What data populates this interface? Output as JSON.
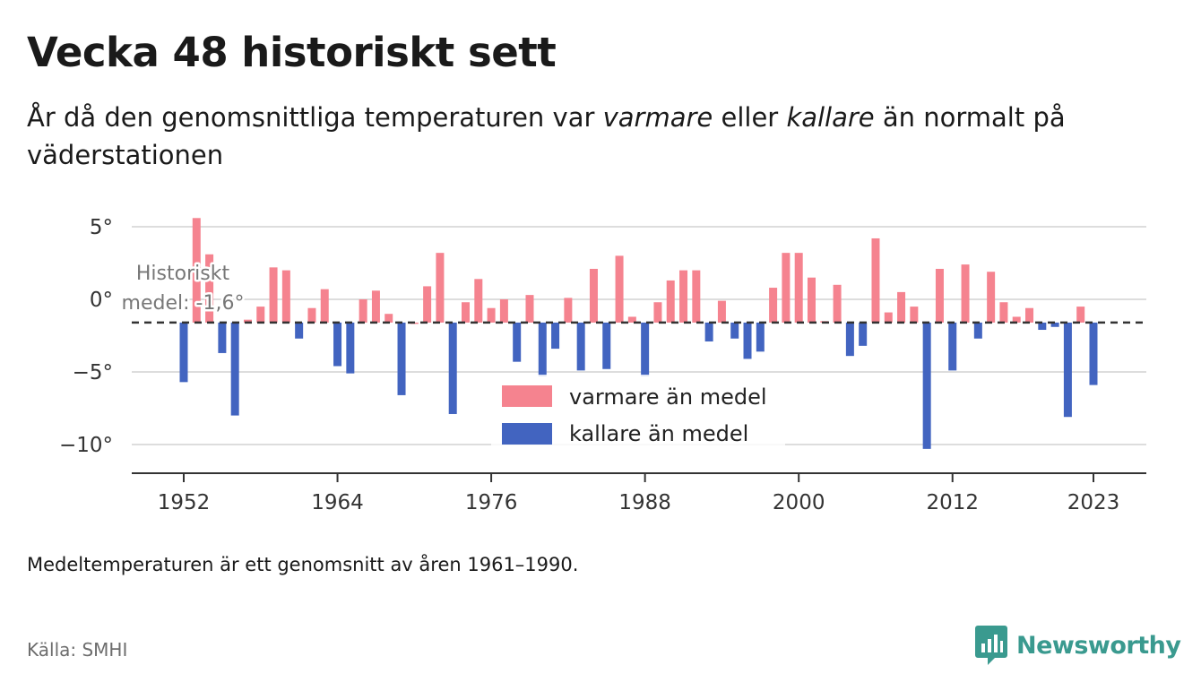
{
  "title": "Vecka 48 historiskt sett",
  "subtitle": {
    "part1": "År då den genomsnittliga temperaturen var ",
    "warm_word": "varmare",
    "part2": " eller ",
    "cold_word": "kallare",
    "part3": " än normalt på väderstationen"
  },
  "note": "Medeltemperaturen är ett genomsnitt av åren 1961–1990.",
  "source": "Källa: SMHI",
  "brand": {
    "name": "Newsworthy",
    "icon": "newsworthy-logo-icon"
  },
  "colors": {
    "warm": "#f5838f",
    "cold": "#4264c0",
    "axis": "#333333",
    "grid": "#dddddd",
    "brand": "#3a9a8f"
  },
  "chart_data": {
    "type": "bar",
    "baseline": -1.6,
    "baseline_label_line1": "Historiskt",
    "baseline_label_line2": "medel: -1,6°",
    "ylim": [
      -12,
      7
    ],
    "yticks": [
      5,
      0,
      -5,
      -10
    ],
    "ytick_labels": [
      "5°",
      "0°",
      "−5°",
      "−10°"
    ],
    "xticks": [
      1952,
      1964,
      1976,
      1988,
      2000,
      2012,
      2023
    ],
    "xlim": [
      1948,
      2027
    ],
    "legend": {
      "warm": "varmare än medel",
      "cold": "kallare än medel",
      "position": "bottom-center"
    },
    "x": [
      1952,
      1953,
      1954,
      1955,
      1956,
      1957,
      1958,
      1959,
      1960,
      1961,
      1962,
      1963,
      1964,
      1965,
      1966,
      1967,
      1968,
      1969,
      1970,
      1971,
      1972,
      1973,
      1974,
      1975,
      1976,
      1977,
      1978,
      1979,
      1980,
      1981,
      1982,
      1983,
      1984,
      1985,
      1986,
      1987,
      1988,
      1989,
      1990,
      1991,
      1992,
      1993,
      1994,
      1995,
      1996,
      1997,
      1998,
      1999,
      2000,
      2001,
      2002,
      2003,
      2004,
      2005,
      2006,
      2007,
      2008,
      2009,
      2010,
      2011,
      2012,
      2013,
      2014,
      2015,
      2016,
      2017,
      2018,
      2019,
      2020,
      2021,
      2022,
      2023
    ],
    "values": [
      -5.7,
      5.6,
      3.1,
      -3.7,
      -8.0,
      -1.4,
      -0.5,
      2.2,
      2.0,
      -2.7,
      -0.6,
      0.7,
      -4.6,
      -5.1,
      0.0,
      0.6,
      -1.0,
      -6.6,
      -1.6,
      0.9,
      3.2,
      -7.9,
      -0.2,
      1.4,
      -0.6,
      0.0,
      -4.3,
      0.3,
      -5.3,
      -3.4,
      0.1,
      -4.9,
      2.1,
      -4.8,
      3.0,
      -1.2,
      -5.3,
      -0.2,
      1.3,
      2.0,
      2.0,
      -2.9,
      -0.1,
      -2.7,
      -4.1,
      -3.6,
      0.8,
      3.2,
      3.2,
      1.5,
      -1.5,
      1.0,
      -3.9,
      -3.2,
      4.2,
      -0.9,
      0.5,
      -0.5,
      -10.3,
      2.1,
      -4.9,
      2.4,
      -2.7,
      1.9,
      -0.2,
      -1.2,
      -0.6,
      -2.1,
      -1.9,
      -8.1,
      -0.5,
      -5.9
    ]
  }
}
